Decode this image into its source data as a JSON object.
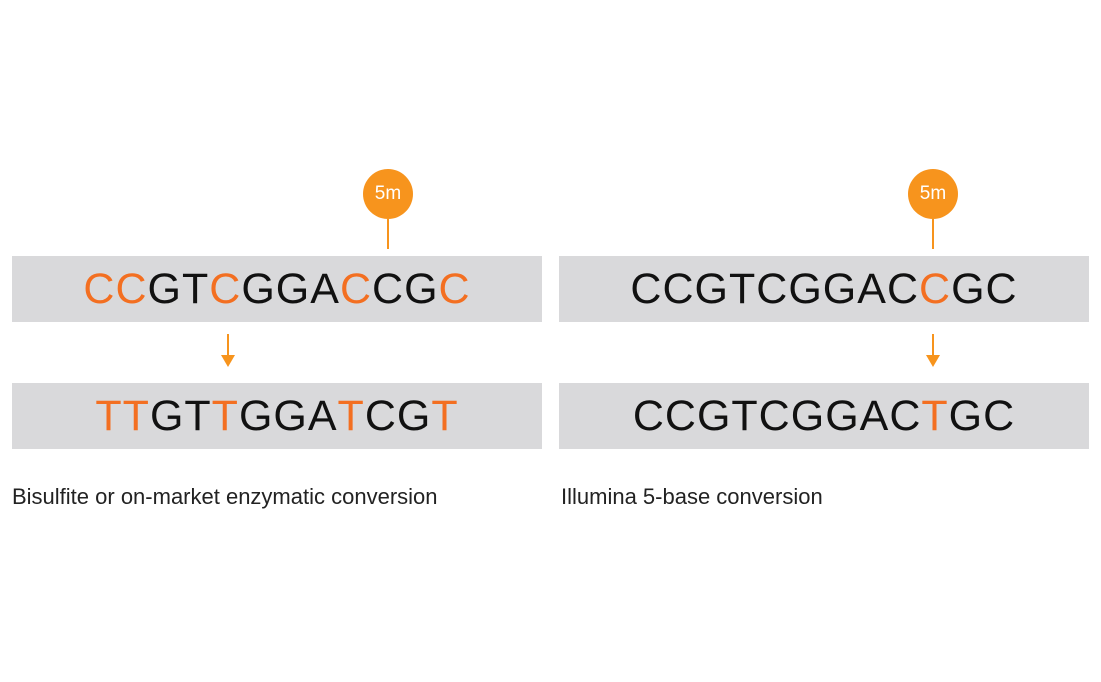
{
  "colors": {
    "highlight": "#f36f21",
    "marker": "#f7941d",
    "box": "#d9d9db"
  },
  "panels": [
    {
      "caption": "Bisulfite or on-market enzymatic conversion",
      "marker": "5m",
      "top": [
        "C",
        "C",
        "G",
        "T",
        "C",
        "G",
        "G",
        "A",
        "C",
        "C",
        "G",
        "C"
      ],
      "top_highlight": [
        0,
        1,
        4,
        8,
        11
      ],
      "bottom": [
        "T",
        "T",
        "G",
        "T",
        "T",
        "G",
        "G",
        "A",
        "T",
        "C",
        "G",
        "T"
      ],
      "bottom_highlight": [
        0,
        1,
        4,
        8,
        11
      ]
    },
    {
      "caption": "Illumina 5-base conversion",
      "marker": "5m",
      "top": [
        "C",
        "C",
        "G",
        "T",
        "C",
        "G",
        "G",
        "A",
        "C",
        "C",
        "G",
        "C"
      ],
      "top_highlight": [
        9
      ],
      "bottom": [
        "C",
        "C",
        "G",
        "T",
        "C",
        "G",
        "G",
        "A",
        "C",
        "T",
        "G",
        "C"
      ],
      "bottom_highlight": [
        9
      ]
    }
  ]
}
